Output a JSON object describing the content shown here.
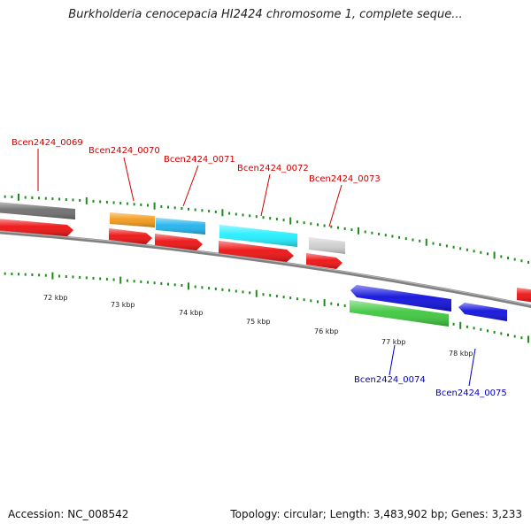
{
  "title": "Burkholderia cenocepacia HI2424 chromosome 1, complete seque...",
  "footer": {
    "accession": "Accession: NC_008542",
    "topology": "Topology: circular; Length: 3,483,902 bp; Genes: 3,233"
  },
  "colors": {
    "tick_green": "#1e8c1e",
    "backbone": "#808080",
    "label_red": "#cc0000",
    "label_blue": "#0000bb",
    "cds_red": "#ee1111",
    "gray_gene": "#6e6e6e",
    "orange_gene": "#f39a1a",
    "skyblue_gene": "#21b4ee",
    "cyan_gene": "#22eeff",
    "lightgray_gene": "#cfcfcf",
    "blue_gene": "#1010dd",
    "green_gene": "#3dc83d"
  },
  "scale_labels": [
    "72 kbp",
    "73 kbp",
    "74 kbp",
    "75 kbp",
    "76 kbp",
    "77 kbp",
    "78 kbp"
  ],
  "gene_labels": [
    {
      "name": "Bcen2424_0069",
      "strand": "forward"
    },
    {
      "name": "Bcen2424_0070",
      "strand": "forward"
    },
    {
      "name": "Bcen2424_0071",
      "strand": "forward"
    },
    {
      "name": "Bcen2424_0072",
      "strand": "forward"
    },
    {
      "name": "Bcen2424_0073",
      "strand": "forward"
    },
    {
      "name": "Bcen2424_0074",
      "strand": "reverse"
    },
    {
      "name": "Bcen2424_0075",
      "strand": "reverse"
    }
  ]
}
